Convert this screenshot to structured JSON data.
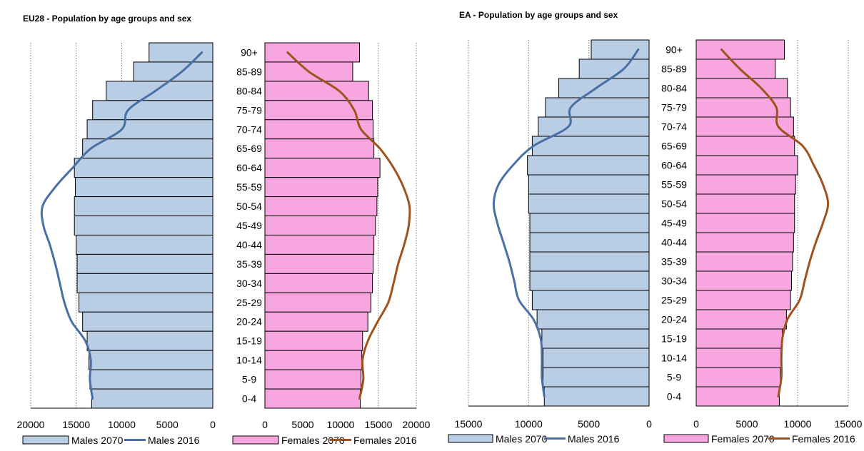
{
  "chart_data": [
    {
      "type": "bar",
      "subtype": "population-pyramid",
      "title": "EU28 - Population by age groups and sex",
      "categories": [
        "90+",
        "85-89",
        "80-84",
        "75-79",
        "70-74",
        "65-69",
        "60-64",
        "55-59",
        "50-54",
        "45-49",
        "40-44",
        "35-39",
        "30-34",
        "25-29",
        "20-24",
        "15-19",
        "10-14",
        "5-9",
        "0-4"
      ],
      "males_axis": {
        "ticks": [
          20000,
          15000,
          10000,
          5000,
          0
        ],
        "range": [
          0,
          20000
        ],
        "direction": "reversed"
      },
      "females_axis": {
        "ticks": [
          0,
          5000,
          10000,
          15000,
          20000
        ],
        "range": [
          0,
          20000
        ]
      },
      "series": [
        {
          "name": "Males 2070",
          "kind": "bar",
          "side": "left",
          "color": "#b9cde5",
          "values": [
            7000,
            8700,
            11700,
            13200,
            13800,
            14300,
            15200,
            15100,
            15200,
            15200,
            15000,
            14900,
            14900,
            14700,
            14300,
            13800,
            13600,
            13500,
            13300
          ]
        },
        {
          "name": "Males 2016",
          "kind": "line",
          "side": "left",
          "color": "#4a6fa5",
          "values": [
            1200,
            3400,
            6300,
            9300,
            10000,
            13400,
            15400,
            17300,
            18700,
            18600,
            17900,
            17300,
            16800,
            16300,
            15500,
            14000,
            13400,
            13500,
            13200
          ]
        },
        {
          "name": "Females 2070",
          "kind": "bar",
          "side": "right",
          "color": "#f7a6e0",
          "values": [
            12500,
            11600,
            13700,
            14200,
            14300,
            14400,
            15200,
            14900,
            14800,
            14600,
            14400,
            14300,
            14200,
            14000,
            13600,
            12900,
            12800,
            12700,
            12600
          ]
        },
        {
          "name": "Females 2016",
          "kind": "line",
          "side": "right",
          "color": "#a0521d",
          "values": [
            3000,
            5800,
            9800,
            11800,
            12700,
            15200,
            17000,
            18300,
            19100,
            19000,
            18400,
            17600,
            17000,
            16300,
            14900,
            13600,
            12900,
            13000,
            12500
          ]
        }
      ],
      "legend": [
        "Males 2070",
        "Males 2016",
        "Females 2070",
        "Females 2016"
      ],
      "legend_position": "bottom",
      "grid": "vertical-dotted"
    },
    {
      "type": "bar",
      "subtype": "population-pyramid",
      "title": "EA - Population by age groups and sex",
      "categories": [
        "90+",
        "85-89",
        "80-84",
        "75-79",
        "70-74",
        "65-69",
        "60-64",
        "55-59",
        "50-54",
        "45-49",
        "40-44",
        "35-39",
        "30-34",
        "25-29",
        "20-24",
        "15-19",
        "10-14",
        "5-9",
        "0-4"
      ],
      "males_axis": {
        "ticks": [
          15000,
          10000,
          5000,
          0
        ],
        "range": [
          0,
          15000
        ],
        "direction": "reversed"
      },
      "females_axis": {
        "ticks": [
          0,
          5000,
          10000,
          15000
        ],
        "range": [
          0,
          15000
        ]
      },
      "series": [
        {
          "name": "Males 2070",
          "kind": "bar",
          "side": "left",
          "color": "#b9cde5",
          "values": [
            4800,
            5800,
            7500,
            8600,
            9200,
            9700,
            10100,
            10000,
            10000,
            9900,
            9900,
            9900,
            9900,
            9700,
            9300,
            8900,
            8800,
            8800,
            8700
          ]
        },
        {
          "name": "Males 2016",
          "kind": "line",
          "side": "left",
          "color": "#4a6fa5",
          "values": [
            900,
            2100,
            4400,
            6500,
            6700,
            9600,
            11300,
            12500,
            12900,
            12600,
            12100,
            11600,
            11200,
            10800,
            9600,
            9000,
            8900,
            8900,
            8700
          ]
        },
        {
          "name": "Females 2070",
          "kind": "bar",
          "side": "right",
          "color": "#f7a6e0",
          "values": [
            8700,
            7800,
            9000,
            9300,
            9600,
            9700,
            10000,
            9800,
            9700,
            9700,
            9600,
            9500,
            9400,
            9300,
            8900,
            8500,
            8400,
            8300,
            8200
          ]
        },
        {
          "name": "Females 2016",
          "kind": "line",
          "side": "right",
          "color": "#a0521d",
          "values": [
            2500,
            4300,
            6400,
            7900,
            8100,
            10500,
            11600,
            12500,
            13000,
            12500,
            11800,
            11200,
            10700,
            10200,
            9000,
            8500,
            8400,
            8400,
            8100
          ]
        }
      ],
      "legend": [
        "Males 2070",
        "Males 2016",
        "Females 2070",
        "Females 2016"
      ],
      "legend_position": "bottom",
      "grid": "vertical-dotted"
    }
  ]
}
